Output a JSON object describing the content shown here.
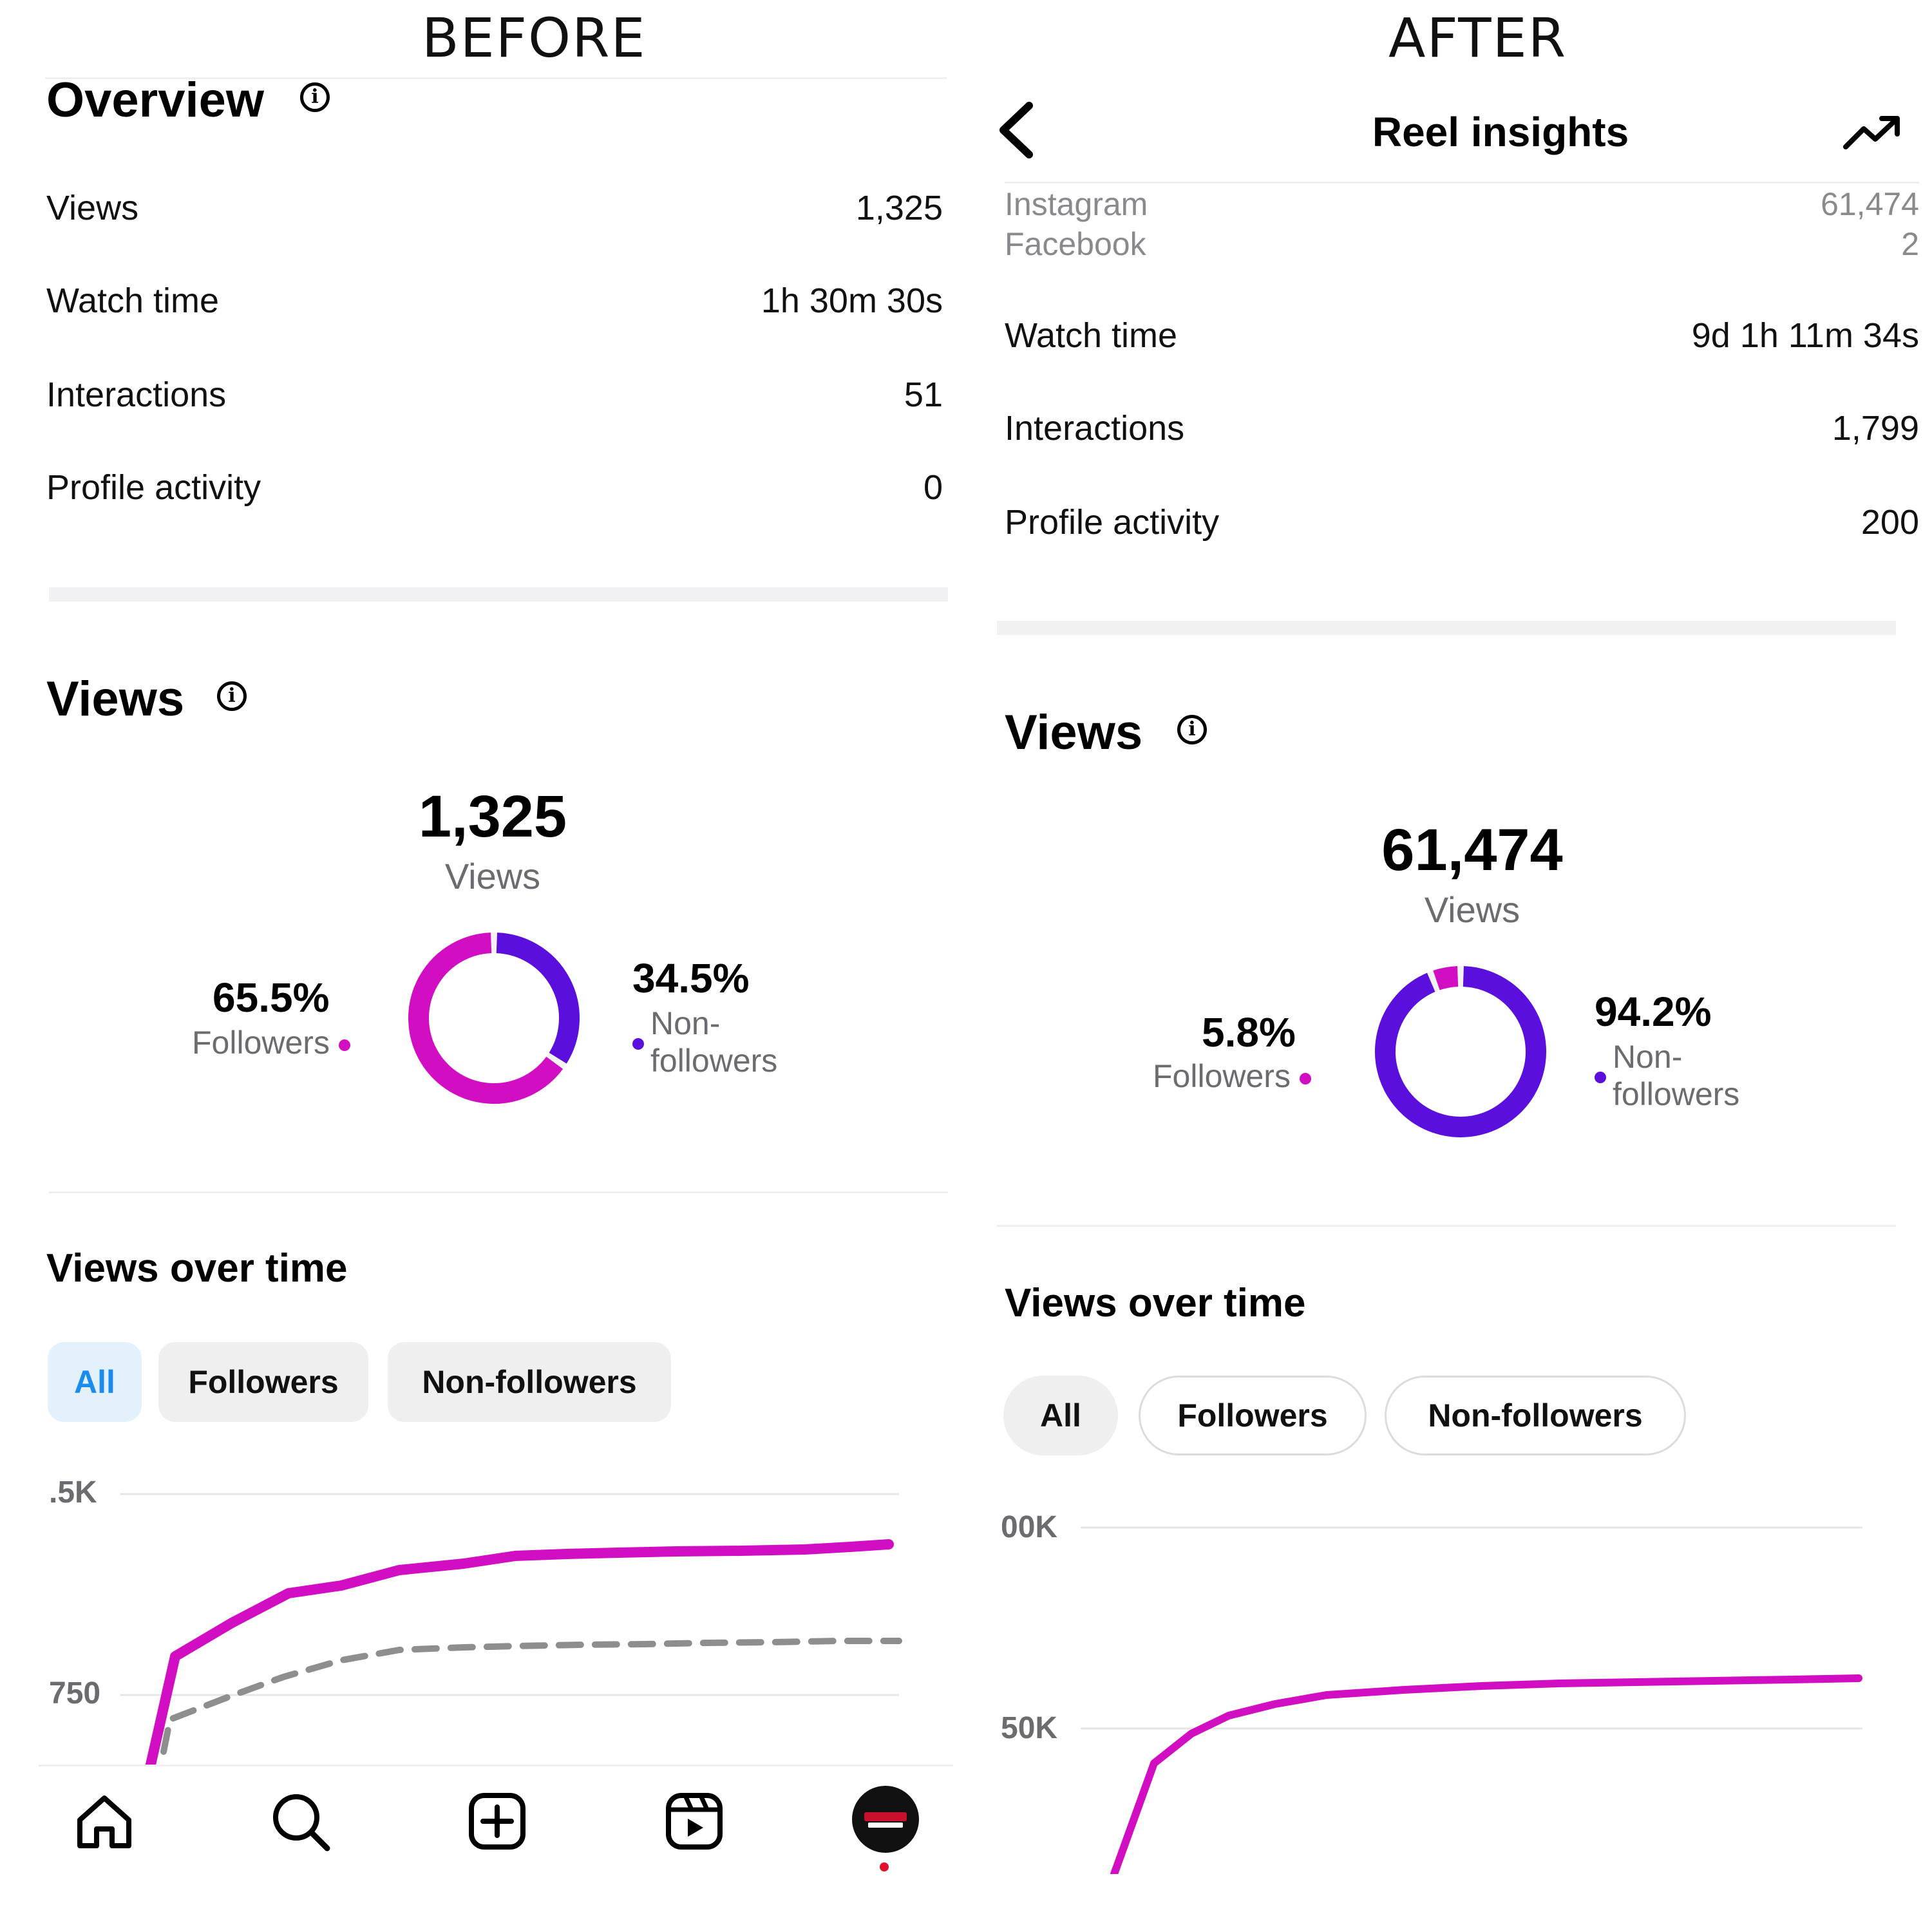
{
  "colors": {
    "followers": "#d20ec3",
    "non_followers": "#5a0fdc",
    "active_tab_bg": "#e3f1fd",
    "active_tab_text": "#1a8cf0",
    "gridline": "#e6e6e8",
    "dashed": "#8e8e8e"
  },
  "before": {
    "banner": "BEFORE",
    "overview_title": "Overview",
    "rows": [
      {
        "label": "Views",
        "value": "1,325"
      },
      {
        "label": "Watch time",
        "value": "1h 30m 30s"
      },
      {
        "label": "Interactions",
        "value": "51"
      },
      {
        "label": "Profile activity",
        "value": "0"
      }
    ],
    "views_title": "Views",
    "total_views": "1,325",
    "total_views_label": "Views",
    "followers_pct": "65.5%",
    "followers_label": "Followers",
    "non_followers_pct": "34.5%",
    "non_followers_label_1": "Non-",
    "non_followers_label_2": "followers",
    "donut": {
      "followers_share": 0.655,
      "non_followers_share": 0.345
    },
    "vot_title": "Views over time",
    "tabs": [
      "All",
      "Followers",
      "Non-followers"
    ],
    "active_tab": "All",
    "axis_labels": [
      ".5K",
      "750"
    ],
    "nav": [
      "home-icon",
      "search-icon",
      "create-icon",
      "reels-icon",
      "profile-avatar"
    ]
  },
  "after": {
    "banner": "AFTER",
    "header_title": "Reel insights",
    "rows_top": [
      {
        "label": "Instagram",
        "value": "61,474"
      },
      {
        "label": "Facebook",
        "value": "2"
      }
    ],
    "rows": [
      {
        "label": "Watch time",
        "value": "9d 1h 11m 34s"
      },
      {
        "label": "Interactions",
        "value": "1,799"
      },
      {
        "label": "Profile activity",
        "value": "200"
      }
    ],
    "views_title": "Views",
    "total_views": "61,474",
    "total_views_label": "Views",
    "followers_pct": "5.8%",
    "followers_label": "Followers",
    "non_followers_pct": "94.2%",
    "non_followers_label_1": "Non-",
    "non_followers_label_2": "followers",
    "donut": {
      "followers_share": 0.058,
      "non_followers_share": 0.942
    },
    "vot_title": "Views over time",
    "tabs": [
      "All",
      "Followers",
      "Non-followers"
    ],
    "active_tab": "All",
    "axis_labels": [
      "00K",
      "50K"
    ]
  }
}
